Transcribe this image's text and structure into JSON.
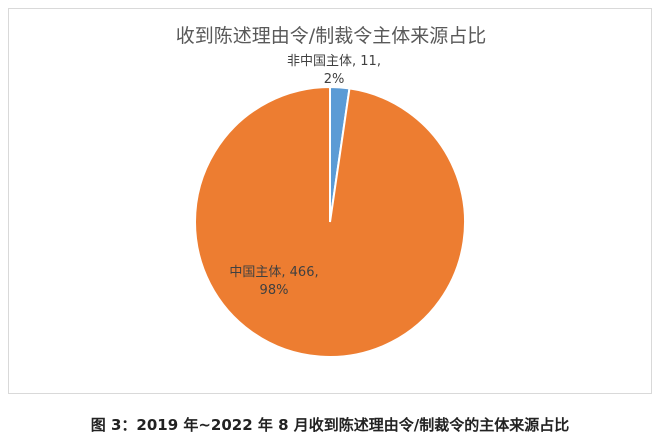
{
  "chart_data": {
    "type": "pie",
    "title": "收到陈述理由令/制裁令主体来源占比",
    "slices": [
      {
        "name": "非中国主体",
        "value": 11,
        "percent": "2%",
        "color": "#5b9bd5"
      },
      {
        "name": "中国主体",
        "value": 466,
        "percent": "98%",
        "color": "#ed7d31"
      }
    ],
    "data_labels": [
      {
        "line1": "非中国主体, 11,",
        "line2": "2%"
      },
      {
        "line1": "中国主体, 466,",
        "line2": "98%"
      }
    ]
  },
  "caption": "图 3：2019 年~2022 年 8 月收到陈述理由令/制裁令的主体来源占比"
}
